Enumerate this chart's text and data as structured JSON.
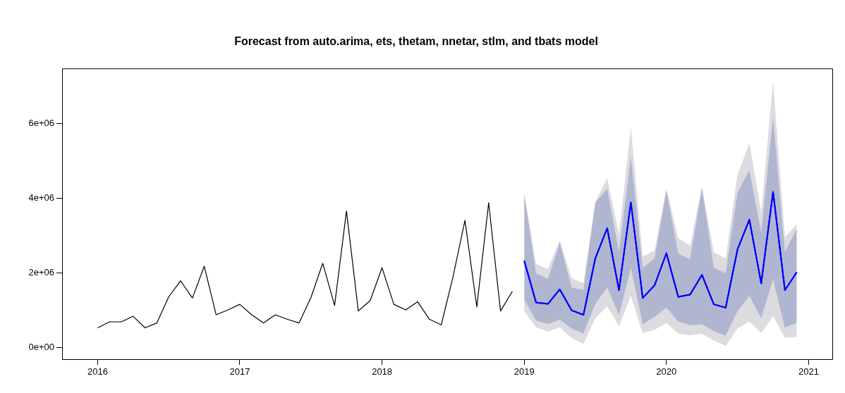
{
  "chart_data": {
    "type": "line",
    "title": "Forecast from auto.arima, ets, thetam, nnetar, stlm, and tbats model",
    "xlim": [
      "2015-10",
      "2021-03"
    ],
    "xticks": [
      {
        "value": "2016-01",
        "label": "2016"
      },
      {
        "value": "2017-01",
        "label": "2017"
      },
      {
        "value": "2018-01",
        "label": "2018"
      },
      {
        "value": "2019-01",
        "label": "2019"
      },
      {
        "value": "2020-01",
        "label": "2020"
      },
      {
        "value": "2021-01",
        "label": "2021"
      }
    ],
    "ylim": [
      -320000,
      7470000
    ],
    "yticks": [
      {
        "value": 0,
        "label": "0e+00"
      },
      {
        "value": 2000000,
        "label": "2e+06"
      },
      {
        "value": 4000000,
        "label": "4e+06"
      },
      {
        "value": 6000000,
        "label": "6e+06"
      }
    ],
    "grid": false,
    "legend": false,
    "marker": "none",
    "line_style": "solid",
    "series": [
      {
        "color": "#000000",
        "x": [
          "2016-01",
          "2016-02",
          "2016-03",
          "2016-04",
          "2016-05",
          "2016-06",
          "2016-07",
          "2016-08",
          "2016-09",
          "2016-10",
          "2016-11",
          "2016-12",
          "2017-01",
          "2017-02",
          "2017-03",
          "2017-04",
          "2017-05",
          "2017-06",
          "2017-07",
          "2017-08",
          "2017-09",
          "2017-10",
          "2017-11",
          "2017-12",
          "2018-01",
          "2018-02",
          "2018-03",
          "2018-04",
          "2018-05",
          "2018-06",
          "2018-07",
          "2018-08",
          "2018-09",
          "2018-10",
          "2018-11",
          "2018-12"
        ],
        "values": [
          520000,
          680000,
          680000,
          830000,
          520000,
          650000,
          1350000,
          1780000,
          1320000,
          2170000,
          870000,
          1000000,
          1150000,
          870000,
          650000,
          870000,
          750000,
          650000,
          1330000,
          2250000,
          1120000,
          3650000,
          970000,
          1250000,
          2130000,
          1150000,
          1000000,
          1220000,
          750000,
          600000,
          1900000,
          3400000,
          1080000,
          3870000,
          970000,
          1500000
        ]
      },
      {
        "color": "#0000ff",
        "x": [
          "2019-01",
          "2019-02",
          "2019-03",
          "2019-04",
          "2019-05",
          "2019-06",
          "2019-07",
          "2019-08",
          "2019-09",
          "2019-10",
          "2019-11",
          "2019-12",
          "2020-01",
          "2020-02",
          "2020-03",
          "2020-04",
          "2020-05",
          "2020-06",
          "2020-07",
          "2020-08",
          "2020-09",
          "2020-10",
          "2020-11",
          "2020-12"
        ],
        "values": [
          2320000,
          1200000,
          1160000,
          1550000,
          990000,
          870000,
          2380000,
          3190000,
          1530000,
          3880000,
          1320000,
          1660000,
          2520000,
          1350000,
          1410000,
          1940000,
          1150000,
          1060000,
          2620000,
          3420000,
          1710000,
          4160000,
          1530000,
          2010000
        ],
        "lower": [
          970000,
          530000,
          420000,
          530000,
          250000,
          90000,
          780000,
          1100000,
          560000,
          1380000,
          380000,
          470000,
          650000,
          370000,
          320000,
          360000,
          180000,
          40000,
          500000,
          690000,
          380000,
          840000,
          250000,
          280000
        ],
        "upper": [
          4150000,
          2230000,
          2100000,
          2860000,
          1850000,
          1720000,
          3900000,
          4530000,
          3020000,
          5900000,
          2420000,
          2600000,
          4240000,
          2920000,
          2730000,
          4290000,
          2550000,
          2380000,
          4620000,
          5470000,
          3610000,
          7130000,
          2950000,
          3300000
        ]
      },
      {
        "color": "#0000ff",
        "x": [
          "2019-01",
          "2019-02",
          "2019-03",
          "2019-04",
          "2019-05",
          "2019-06",
          "2019-07",
          "2019-08",
          "2019-09",
          "2019-10",
          "2019-11",
          "2019-12",
          "2020-01",
          "2020-02",
          "2020-03",
          "2020-04",
          "2020-05",
          "2020-06",
          "2020-07",
          "2020-08",
          "2020-09",
          "2020-10",
          "2020-11",
          "2020-12"
        ],
        "values": [
          2320000,
          1200000,
          1160000,
          1550000,
          990000,
          870000,
          2380000,
          3190000,
          1530000,
          3880000,
          1320000,
          1660000,
          2520000,
          1350000,
          1410000,
          1940000,
          1150000,
          1060000,
          2620000,
          3420000,
          1710000,
          4160000,
          1530000,
          2010000
        ],
        "lower": [
          1280000,
          720000,
          620000,
          740000,
          500000,
          370000,
          1160000,
          1600000,
          870000,
          2130000,
          620000,
          810000,
          1060000,
          690000,
          590000,
          620000,
          430000,
          310000,
          970000,
          1380000,
          780000,
          1820000,
          530000,
          650000
        ],
        "upper": [
          4100000,
          1980000,
          1830000,
          2800000,
          1600000,
          1530000,
          3870000,
          4250000,
          2550000,
          5100000,
          2130000,
          2380000,
          4200000,
          2510000,
          2360000,
          4270000,
          2130000,
          1980000,
          4150000,
          4740000,
          3080000,
          6160000,
          2550000,
          3170000
        ]
      }
    ]
  }
}
